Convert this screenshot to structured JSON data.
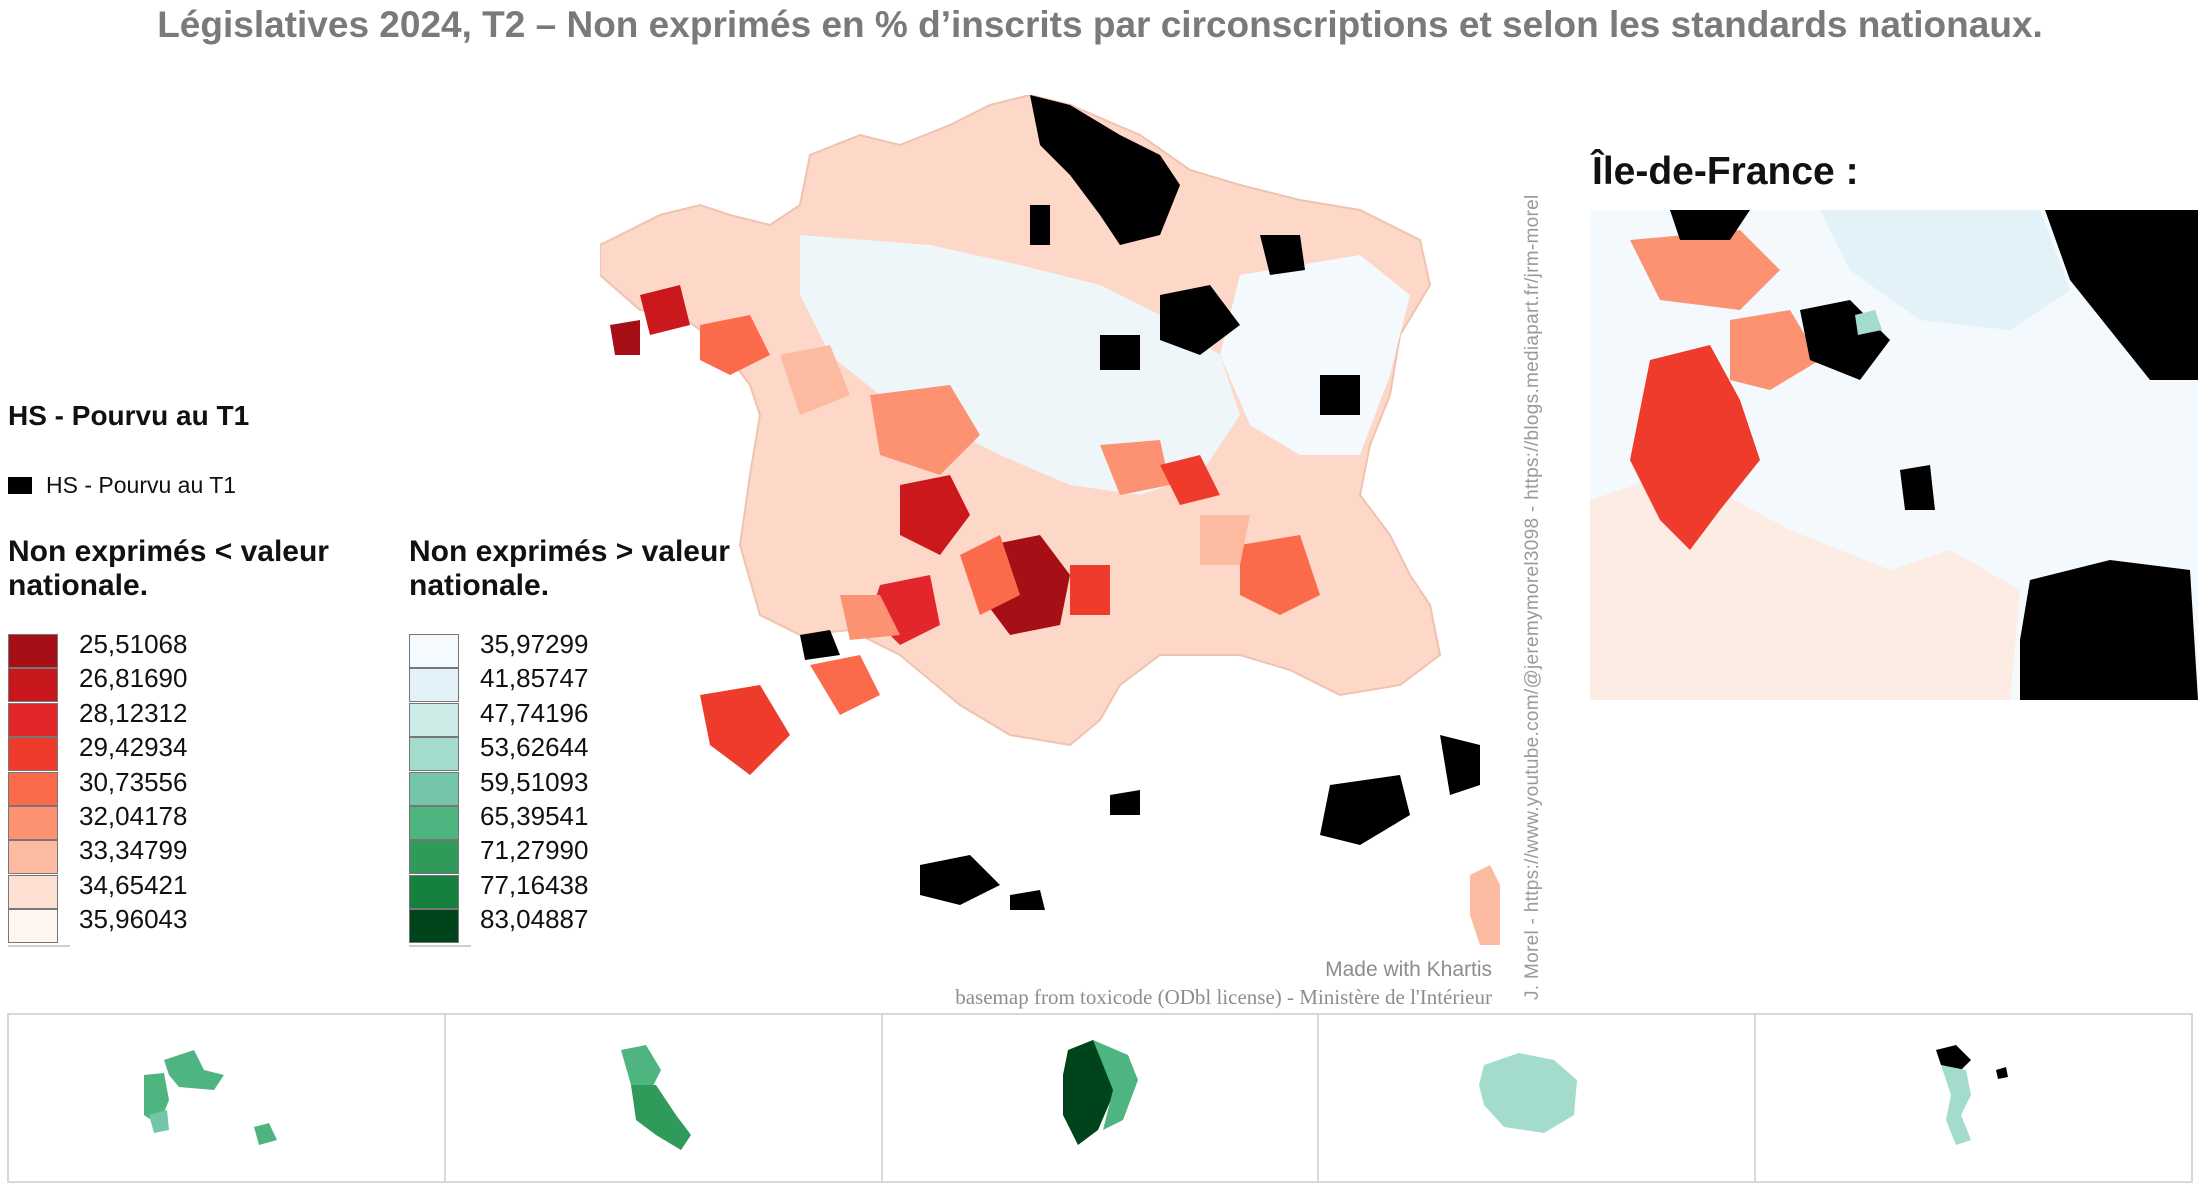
{
  "title": "Législatives 2024, T2 – Non exprimés en % d’inscrits par circonscriptions et selon les standards nationaux.",
  "colors": {
    "hs": "#000000",
    "red_scale": [
      "#a50f15",
      "#cb181d",
      "#ef3b2c",
      "#fb6a4a",
      "#fc9272",
      "#fcbba1",
      "#fee0d2",
      "#fff5f0"
    ],
    "green_scale": [
      "#f4fafd",
      "#e3f1f8",
      "#cdebe6",
      "#a3dccc",
      "#74c6a9",
      "#4eb580",
      "#2f9a5a",
      "#0f6e34"
    ]
  },
  "legend": {
    "hs_title": "HS - Pourvu au T1",
    "hs_item": "HS - Pourvu au T1",
    "below_title": "Non exprimés < valeur nationale.",
    "above_title": "Non exprimés > valeur nationale.",
    "below_classes": [
      {
        "label": "25,51068",
        "color": "#a50f15"
      },
      {
        "label": "26,81690",
        "color": "#c8161d"
      },
      {
        "label": "28,12312",
        "color": "#e3262b"
      },
      {
        "label": "29,42934",
        "color": "#ef3b2c"
      },
      {
        "label": "30,73556",
        "color": "#fb6a4a"
      },
      {
        "label": "32,04178",
        "color": "#fc9272"
      },
      {
        "label": "33,34799",
        "color": "#fcbba1"
      },
      {
        "label": "34,65421",
        "color": "#fee0d2"
      },
      {
        "label": "35,96043",
        "color": "#fff5f0"
      }
    ],
    "above_classes": [
      {
        "label": "35,97299",
        "color": "#f4fafd"
      },
      {
        "label": "41,85747",
        "color": "#e3f1f8"
      },
      {
        "label": "47,74196",
        "color": "#cdebe6"
      },
      {
        "label": "53,62644",
        "color": "#a3dccc"
      },
      {
        "label": "59,51093",
        "color": "#74c6a9"
      },
      {
        "label": "65,39541",
        "color": "#4eb580"
      },
      {
        "label": "71,27990",
        "color": "#2f9a5a"
      },
      {
        "label": "77,16438",
        "color": "#16803f"
      },
      {
        "label": "83,04887",
        "color": "#00441b"
      }
    ]
  },
  "inset_title": "Île-de-France :",
  "credits": {
    "made_with": "Made with Khartis",
    "basemap": "basemap from toxicode (ODbl license) - Ministère de l'Intérieur",
    "author": "J. Morel - https://www.youtube.com/@jeremymorel3098 - https://blogs.mediapart.fr/jrm-morel"
  }
}
